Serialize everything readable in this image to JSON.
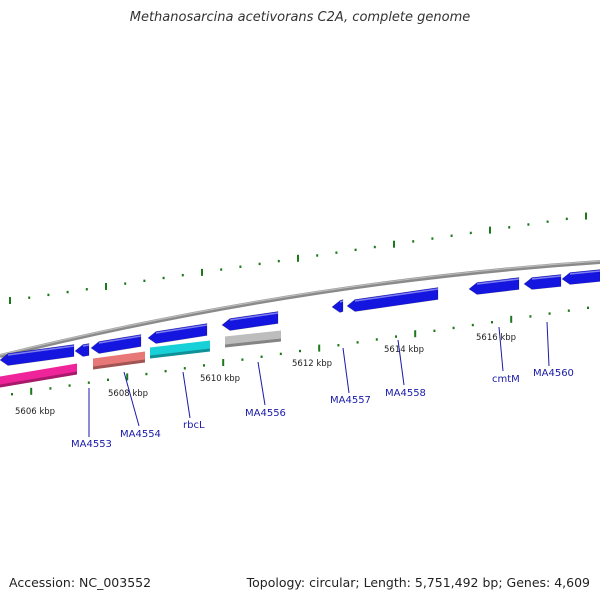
{
  "header": {
    "title": "Methanosarcina acetivorans C2A, complete genome"
  },
  "footer": {
    "accession": "Accession: NC_003552",
    "stats": "Topology: circular; Length: 5,751,492 bp; Genes: 4,609"
  },
  "colors": {
    "background": "#ffffff",
    "backbone": "#8a8a8a",
    "ticks": "#1a7a1a",
    "gene_label": "#1a1aa8",
    "cds": "#1515e0",
    "rRNA_pink": "#f0249a",
    "salmon": "#e87878",
    "cyan": "#18d0d8",
    "gray": "#bdbdbd"
  },
  "map": {
    "scale_labels": [
      "5606 kbp",
      "5608 kbp",
      "5610 kbp",
      "5612 kbp",
      "5614 kbp",
      "5616 kbp"
    ],
    "genes": [
      {
        "name": "MA4553"
      },
      {
        "name": "MA4554"
      },
      {
        "name": "rbcL"
      },
      {
        "name": "MA4556"
      },
      {
        "name": "MA4557"
      },
      {
        "name": "MA4558"
      },
      {
        "name": "cmtM"
      },
      {
        "name": "MA4560"
      }
    ]
  }
}
